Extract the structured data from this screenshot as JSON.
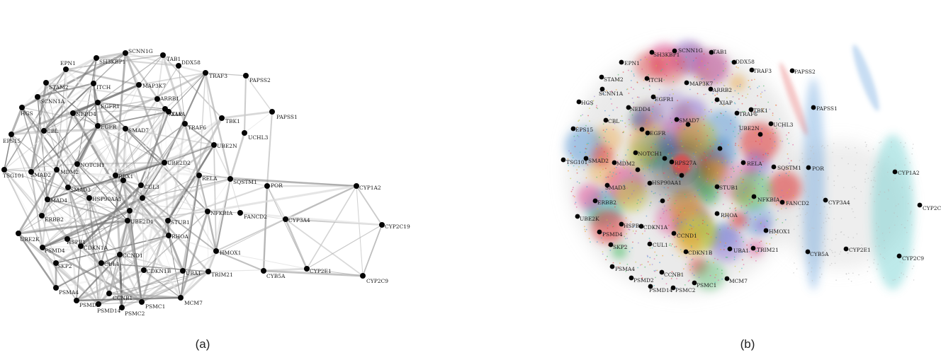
{
  "panels": [
    {
      "caption": "(a)",
      "nodes": [
        "SCNN1G",
        "TAB1",
        "SH3KBP1",
        "DDX58",
        "TRAF3",
        "EPN1",
        "PAPSS2",
        "STAM2",
        "ITCH",
        "MAP3K7",
        "SCNN1A",
        "EGFR1",
        "ARRB1",
        "XIAP",
        "HGS",
        "NEDD4",
        "KIAA",
        "PAPSS1",
        "TBK1",
        "CBL",
        "SMAD7",
        "TRAF6",
        "UCHL3",
        "EPS15",
        "EGFR",
        "UBE2N",
        "TSG101",
        "SMAD2",
        "NOTCH1",
        "MDM2",
        "RBX1",
        "UBE2D2",
        "SMAD3",
        "RELA",
        "SQSTM1",
        "POR",
        "CYP1A2",
        "SMAD4",
        "HSP90AA1",
        "CUL3",
        "NFKBIA",
        "ERBB2",
        "STUB1",
        "FANCD2",
        "CYP3A4",
        "CYP2C19",
        "UBE2K",
        "HSPB1",
        "UBE2D1",
        "RHOA",
        "PSMD4",
        "CDKN1A",
        "CDKN1B",
        "CCND1",
        "HMOX1",
        "SKP2",
        "CUL1",
        "UBA1",
        "TRIM21",
        "CYB5A",
        "CYP2E1",
        "CYP2C9",
        "PSMA4",
        "CCNB1",
        "PSMD2",
        "PSMD14",
        "PSMC2",
        "PSMC1",
        "MCM7"
      ]
    },
    {
      "caption": "(b)",
      "nodes": [
        "SH3KBP1",
        "SCNN1G",
        "TAB1",
        "DDX58",
        "TRAF3",
        "EPN1",
        "PAPSS2",
        "STAM2",
        "ITCH",
        "MAP3K7",
        "ARRB2",
        "SCNN1A",
        "EGFR1",
        "XIAP",
        "TBK1",
        "PAPSS1",
        "HGS",
        "NEDD4",
        "TRAF6",
        "UCHL3",
        "CBL",
        "SMAD7",
        "UBE2N",
        "EPS15",
        "EGFR",
        "SQSTM1",
        "TSG101",
        "SMAD2",
        "RELA",
        "POR",
        "CYP1A2",
        "RPS27A",
        "NOTCH1",
        "SMAD3",
        "MDM2",
        "HSP90AA1",
        "NFKBIA",
        "FANCD2",
        "CYP3A4",
        "CYP2C19",
        "ERBB2",
        "STUB1",
        "UBE2K",
        "RHOA",
        "HSPB1",
        "CDKN1A",
        "PSMD4",
        "CCND1",
        "HMOX1",
        "SKP2",
        "CUL1",
        "CDKN1B",
        "UBA1",
        "TRIM21",
        "CYB5A",
        "CYP2E1",
        "CYP2C9",
        "PSMA4",
        "CCNB1",
        "PSMD2",
        "PSMD14",
        "PSMC2",
        "PSMC1",
        "MCM7"
      ],
      "cluster_colors": [
        "#e35a9e",
        "#4fbf6a",
        "#f0a030",
        "#4a8fd6",
        "#45c2c2",
        "#9a7fd6",
        "#e14848",
        "#c6c640"
      ]
    }
  ]
}
